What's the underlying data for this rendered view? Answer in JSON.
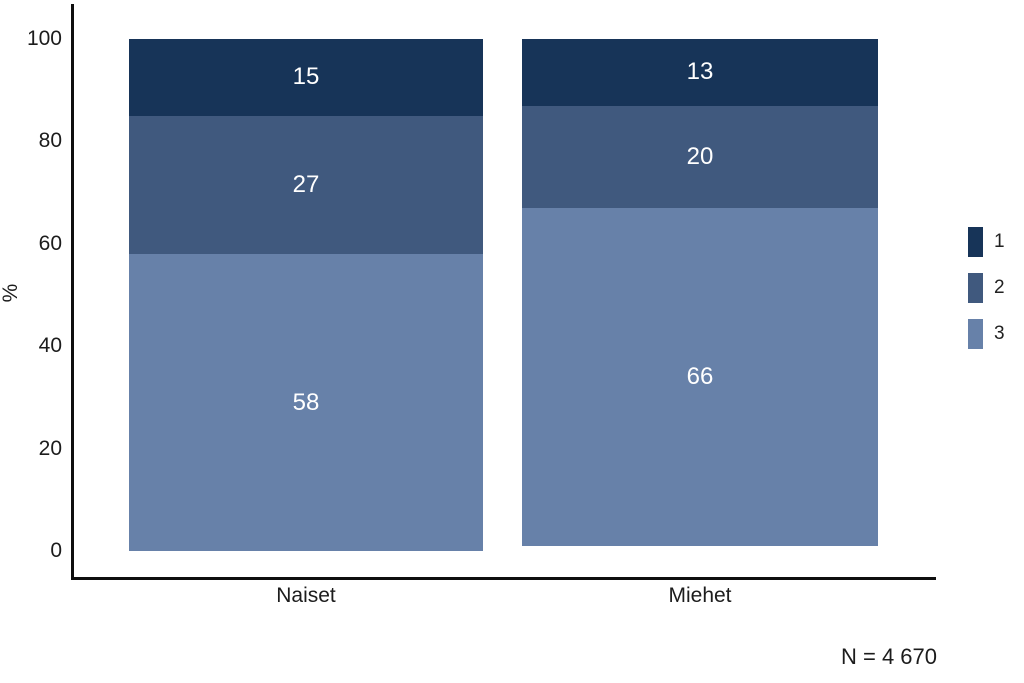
{
  "figure": {
    "note": "N = 4 670"
  },
  "chart_data": {
    "type": "bar",
    "stacked": true,
    "orientation": "vertical",
    "title": "",
    "xlabel": "",
    "ylabel": "%",
    "categories": [
      "Naiset",
      "Miehet"
    ],
    "series": [
      {
        "name": "1",
        "values": [
          15,
          13
        ],
        "color": "#173458"
      },
      {
        "name": "2",
        "values": [
          27,
          20
        ],
        "color": "#40597E"
      },
      {
        "name": "3",
        "values": [
          58,
          66
        ],
        "color": "#6781A9"
      }
    ],
    "value_labels": [
      [
        15,
        27,
        58
      ],
      [
        13,
        20,
        66
      ]
    ],
    "value_label_color": "#ffffff",
    "ylim": [
      0,
      100
    ],
    "y_ticks": [
      0,
      20,
      40,
      60,
      80,
      100
    ],
    "grid": false,
    "legend_position": "right",
    "legend_entries": [
      "1",
      "2",
      "3"
    ],
    "axis_color": "#0e0e0e",
    "note": "N = 4 670"
  }
}
